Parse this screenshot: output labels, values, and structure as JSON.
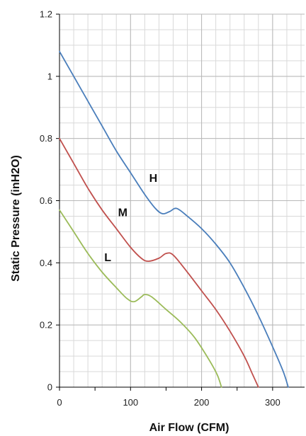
{
  "chart_data": {
    "type": "line",
    "xlabel": "Air Flow (CFM)",
    "ylabel": "Static Pressure (inH2O)",
    "xlim": [
      0,
      345
    ],
    "ylim": [
      0,
      1.2
    ],
    "xticks": [
      0,
      100,
      200,
      300
    ],
    "xtick_labels": [
      "0",
      "100",
      "200",
      "300"
    ],
    "yticks": [
      0,
      0.2,
      0.4,
      0.6,
      0.8,
      1,
      1.2
    ],
    "ytick_labels": [
      "0",
      "0.2",
      "0.4",
      "0.6",
      "0.8",
      "1",
      "1.2"
    ],
    "x_minor_step": 20,
    "y_minor_step": 0.05,
    "grid": true,
    "legend": "none",
    "series": [
      {
        "label": "H",
        "color": "#4a7ebb",
        "label_at": [
          132,
          0.66
        ],
        "points": [
          [
            0,
            1.08
          ],
          [
            20,
            1.0
          ],
          [
            40,
            0.92
          ],
          [
            60,
            0.84
          ],
          [
            80,
            0.76
          ],
          [
            100,
            0.69
          ],
          [
            120,
            0.62
          ],
          [
            135,
            0.575
          ],
          [
            145,
            0.558
          ],
          [
            155,
            0.565
          ],
          [
            165,
            0.575
          ],
          [
            180,
            0.55
          ],
          [
            200,
            0.51
          ],
          [
            220,
            0.46
          ],
          [
            240,
            0.4
          ],
          [
            260,
            0.32
          ],
          [
            280,
            0.23
          ],
          [
            300,
            0.13
          ],
          [
            315,
            0.05
          ],
          [
            322,
            0.0
          ]
        ]
      },
      {
        "label": "M",
        "color": "#c0504d",
        "label_at": [
          89,
          0.55
        ],
        "points": [
          [
            0,
            0.8
          ],
          [
            20,
            0.72
          ],
          [
            40,
            0.64
          ],
          [
            60,
            0.57
          ],
          [
            80,
            0.51
          ],
          [
            100,
            0.45
          ],
          [
            115,
            0.415
          ],
          [
            125,
            0.405
          ],
          [
            140,
            0.415
          ],
          [
            150,
            0.43
          ],
          [
            160,
            0.425
          ],
          [
            180,
            0.37
          ],
          [
            200,
            0.31
          ],
          [
            220,
            0.25
          ],
          [
            240,
            0.18
          ],
          [
            260,
            0.1
          ],
          [
            272,
            0.04
          ],
          [
            280,
            0.0
          ]
        ]
      },
      {
        "label": "L",
        "color": "#9bbb59",
        "label_at": [
          68,
          0.405
        ],
        "points": [
          [
            0,
            0.57
          ],
          [
            20,
            0.5
          ],
          [
            40,
            0.43
          ],
          [
            60,
            0.37
          ],
          [
            80,
            0.32
          ],
          [
            95,
            0.285
          ],
          [
            105,
            0.275
          ],
          [
            115,
            0.29
          ],
          [
            120,
            0.298
          ],
          [
            130,
            0.29
          ],
          [
            150,
            0.25
          ],
          [
            170,
            0.21
          ],
          [
            190,
            0.16
          ],
          [
            210,
            0.09
          ],
          [
            222,
            0.04
          ],
          [
            228,
            0.0
          ]
        ]
      }
    ]
  }
}
